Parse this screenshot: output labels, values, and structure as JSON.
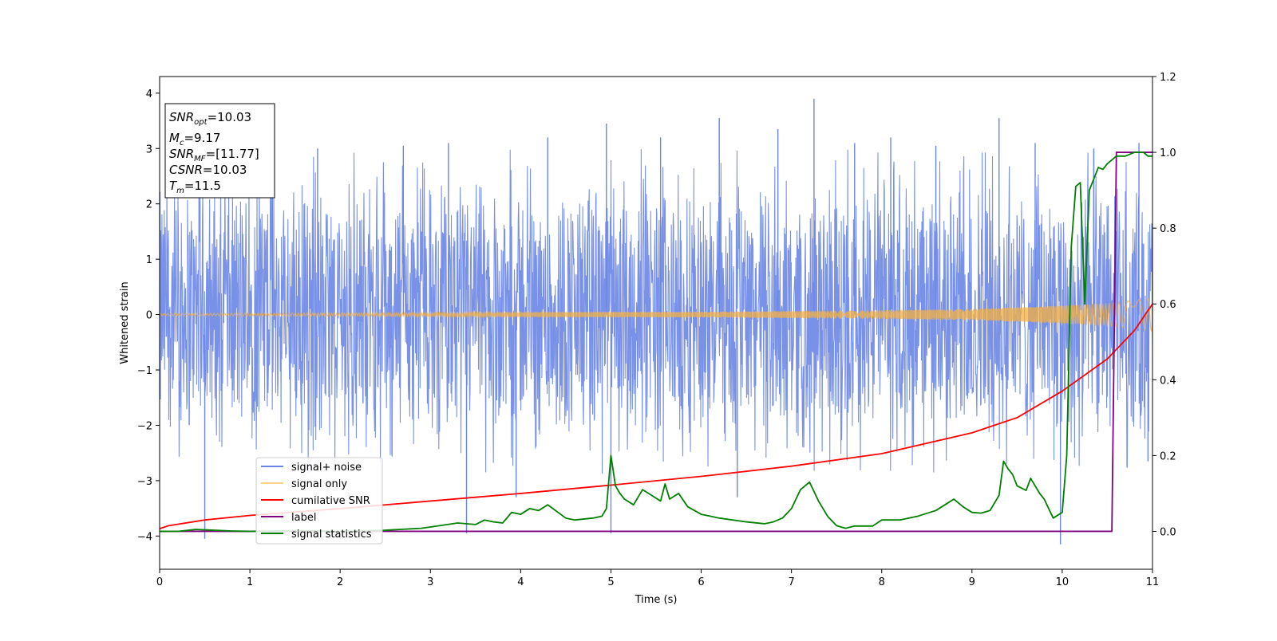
{
  "chart_data": {
    "type": "line",
    "xlabel": "Time (s)",
    "ylabel": "Whitened strain",
    "xlim": [
      0,
      11
    ],
    "ylim": [
      -4.6,
      4.3
    ],
    "y2lim": [
      -0.1,
      1.2
    ],
    "x_ticks": [
      0,
      1,
      2,
      3,
      4,
      5,
      6,
      7,
      8,
      9,
      10,
      11
    ],
    "y_ticks": [
      4,
      3,
      2,
      1,
      0,
      -1,
      -2,
      -3,
      -4
    ],
    "y_tick_labels": [
      "4",
      "3",
      "2",
      "1",
      "0",
      "−1",
      "−2",
      "−3",
      "−4"
    ],
    "y2_ticks": [
      0.0,
      0.2,
      0.4,
      0.6,
      0.8,
      1.0,
      1.2
    ],
    "y2_tick_labels": [
      "0.0",
      "0.2",
      "0.4",
      "0.6",
      "0.8",
      "1.0",
      "1.2"
    ],
    "grid": false,
    "legend_position": "lower-left",
    "info_box": {
      "lines": [
        {
          "var": "SNR",
          "sub": "opt",
          "value": "=10.03"
        },
        {
          "var": "M",
          "sub": "c",
          "value": "=9.17"
        },
        {
          "var": "SNR",
          "sub": "MF",
          "value": "=[11.77]"
        },
        {
          "var": "CSNR",
          "sub": "",
          "value": "=10.03"
        },
        {
          "var": "T",
          "sub": "m",
          "value": "=11.5"
        }
      ]
    },
    "series": [
      {
        "name": "signal+ noise",
        "color": "#6a86e6",
        "axis": "left",
        "kind": "noise",
        "envelope": {
          "x": [
            0,
            11
          ],
          "upper": [
            2.6,
            2.6
          ],
          "lower": [
            -2.5,
            -2.5
          ]
        },
        "spikes": [
          [
            0.5,
            -4.05
          ],
          [
            1.25,
            3.0
          ],
          [
            1.75,
            3.0
          ],
          [
            2.7,
            3.05
          ],
          [
            3.2,
            3.1
          ],
          [
            3.4,
            -3.95
          ],
          [
            3.95,
            -3.3
          ],
          [
            4.3,
            3.2
          ],
          [
            4.95,
            3.45
          ],
          [
            5.0,
            -3.95
          ],
          [
            5.55,
            3.2
          ],
          [
            6.2,
            3.55
          ],
          [
            6.4,
            -3.3
          ],
          [
            6.85,
            3.35
          ],
          [
            7.25,
            3.9
          ],
          [
            7.7,
            3.1
          ],
          [
            8.1,
            3.2
          ],
          [
            8.6,
            3.05
          ],
          [
            9.3,
            3.55
          ],
          [
            9.7,
            3.1
          ],
          [
            9.98,
            -4.15
          ],
          [
            10.35,
            3.0
          ],
          [
            10.85,
            3.1
          ],
          [
            10.95,
            -2.65
          ]
        ]
      },
      {
        "name": "signal only",
        "color": "#f5b041",
        "axis": "left",
        "kind": "chirp",
        "amplitude": {
          "x": [
            0,
            2,
            4,
            6,
            8,
            9,
            10,
            10.5,
            11
          ],
          "y": [
            0.02,
            0.03,
            0.04,
            0.05,
            0.08,
            0.1,
            0.16,
            0.2,
            0.3
          ]
        }
      },
      {
        "name": "cumilative SNR",
        "color": "#ff0000",
        "axis": "right",
        "x": [
          0,
          0.1,
          0.5,
          1,
          2,
          3,
          4,
          5,
          6,
          7,
          8,
          9,
          9.5,
          10,
          10.5,
          10.8,
          11
        ],
        "y": [
          0.007,
          0.015,
          0.03,
          0.042,
          0.06,
          0.08,
          0.1,
          0.122,
          0.145,
          0.172,
          0.205,
          0.26,
          0.3,
          0.37,
          0.455,
          0.53,
          0.6
        ]
      },
      {
        "name": "label",
        "color": "#800080",
        "axis": "right",
        "x": [
          0,
          10.55,
          10.6,
          11
        ],
        "y": [
          0.0,
          0.0,
          1.0,
          1.0
        ]
      },
      {
        "name": "signal statistics",
        "color": "#008000",
        "axis": "right",
        "x": [
          0,
          0.2,
          0.4,
          0.6,
          0.8,
          1.0,
          1.5,
          2.0,
          2.5,
          2.9,
          3.1,
          3.3,
          3.5,
          3.6,
          3.7,
          3.8,
          3.9,
          4.0,
          4.1,
          4.2,
          4.3,
          4.5,
          4.6,
          4.8,
          4.9,
          4.95,
          5.0,
          5.05,
          5.1,
          5.15,
          5.25,
          5.35,
          5.45,
          5.55,
          5.6,
          5.65,
          5.75,
          5.85,
          6.0,
          6.2,
          6.5,
          6.7,
          6.8,
          6.9,
          7.0,
          7.1,
          7.2,
          7.3,
          7.4,
          7.5,
          7.6,
          7.7,
          7.9,
          8.0,
          8.2,
          8.4,
          8.6,
          8.7,
          8.8,
          8.9,
          9.0,
          9.1,
          9.2,
          9.3,
          9.35,
          9.4,
          9.45,
          9.5,
          9.6,
          9.65,
          9.7,
          9.75,
          9.8,
          9.9,
          10.0,
          10.05,
          10.1,
          10.15,
          10.2,
          10.25,
          10.3,
          10.35,
          10.4,
          10.45,
          10.5,
          10.6,
          10.7,
          10.8,
          10.9,
          10.95,
          11
        ],
        "y": [
          0.0,
          0.0,
          0.005,
          0.003,
          0.001,
          0.0,
          0.002,
          0.0,
          0.003,
          0.008,
          0.015,
          0.022,
          0.018,
          0.03,
          0.025,
          0.022,
          0.05,
          0.045,
          0.06,
          0.055,
          0.07,
          0.035,
          0.03,
          0.035,
          0.04,
          0.06,
          0.2,
          0.12,
          0.1,
          0.085,
          0.07,
          0.11,
          0.095,
          0.08,
          0.125,
          0.085,
          0.1,
          0.065,
          0.045,
          0.035,
          0.025,
          0.02,
          0.025,
          0.035,
          0.06,
          0.11,
          0.13,
          0.08,
          0.04,
          0.015,
          0.008,
          0.014,
          0.014,
          0.03,
          0.03,
          0.04,
          0.055,
          0.07,
          0.085,
          0.065,
          0.05,
          0.048,
          0.055,
          0.095,
          0.185,
          0.165,
          0.15,
          0.12,
          0.108,
          0.14,
          0.12,
          0.1,
          0.085,
          0.035,
          0.05,
          0.2,
          0.75,
          0.91,
          0.92,
          0.6,
          0.9,
          0.93,
          0.96,
          0.955,
          0.97,
          0.99,
          0.99,
          1.0,
          1.0,
          0.99,
          0.99
        ]
      }
    ]
  }
}
